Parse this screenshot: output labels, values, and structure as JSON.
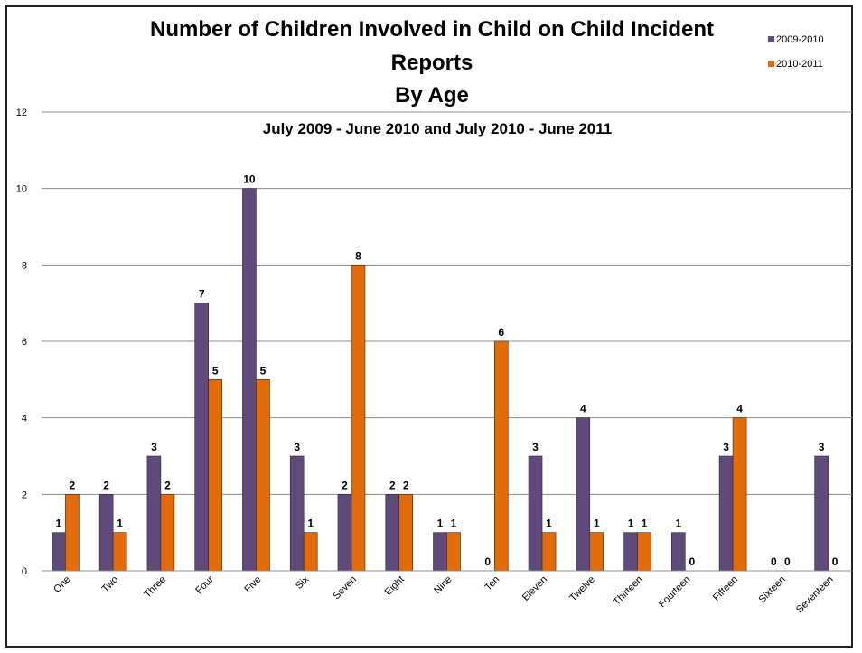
{
  "chart_data": {
    "type": "bar",
    "title_lines": [
      "Number of Children Involved in Child on Child Incident",
      "Reports",
      "By Age"
    ],
    "subtitle": "July 2009 - June 2010 and July 2010 - June 2011",
    "categories": [
      "One",
      "Two",
      "Three",
      "Four",
      "Five",
      "Six",
      "Seven",
      "Eight",
      "Nine",
      "Ten",
      "Eleven",
      "Twelve",
      "Thirteen",
      "Fourteen",
      "Fifteen",
      "Sixteen",
      "Seventeen"
    ],
    "series": [
      {
        "name": "2009-2010",
        "color": "#604a7b",
        "values": [
          1,
          2,
          3,
          7,
          10,
          3,
          2,
          2,
          1,
          0,
          3,
          4,
          1,
          1,
          3,
          0,
          3
        ]
      },
      {
        "name": "2010-2011",
        "color": "#e36c09",
        "values": [
          2,
          1,
          2,
          5,
          5,
          1,
          8,
          2,
          1,
          6,
          1,
          1,
          1,
          0,
          4,
          0,
          0
        ]
      }
    ],
    "ylim": [
      0,
      12
    ],
    "yticks": [
      0,
      2,
      4,
      6,
      8,
      10,
      12
    ],
    "grid": true,
    "legend_position": "top-right",
    "data_labels": true
  }
}
